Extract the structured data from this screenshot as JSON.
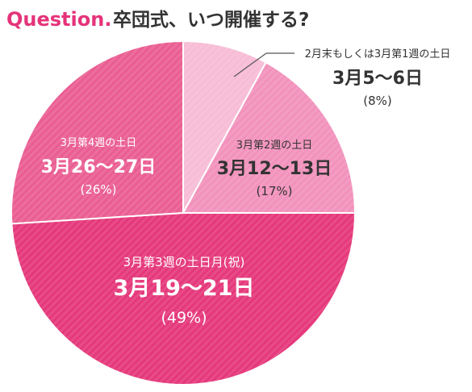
{
  "header": {
    "question_label": "Question.",
    "question_text": "卒団式、いつ開催する?"
  },
  "colors": {
    "accent": "#e5337a",
    "text": "#333333",
    "leader": "#555555"
  },
  "chart_data": {
    "type": "pie",
    "title": "卒団式、いつ開催する?",
    "slices": [
      {
        "category": "2月末もしくは3月第1週の土日",
        "date": "3月5〜6日",
        "value": 8,
        "percent_label": "(8%)",
        "color": "#f7bcd6",
        "label_color": "#333333"
      },
      {
        "category": "3月第2週の土日",
        "date": "3月12〜13日",
        "value": 17,
        "percent_label": "(17%)",
        "color": "#f292bc",
        "label_color": "#333333"
      },
      {
        "category": "3月第3週の土日月(祝)",
        "date": "3月19〜21日",
        "value": 49,
        "percent_label": "(49%)",
        "color": "#e5387b",
        "label_color": "#ffffff"
      },
      {
        "category": "3月第4週の土日",
        "date": "3月26〜27日",
        "value": 26,
        "percent_label": "(26%)",
        "color": "#ea5d92",
        "label_color": "#ffffff"
      }
    ]
  }
}
